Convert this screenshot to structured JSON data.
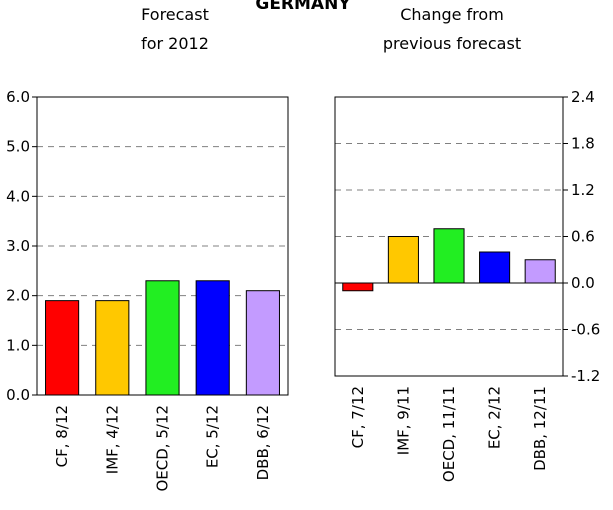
{
  "title": "GERMANY",
  "colors": {
    "grid": "#808080",
    "frame": "#000000",
    "bar_outline": "#000000"
  },
  "chart_data": [
    {
      "type": "bar",
      "title": "Forecast\nfor 2012",
      "categories": [
        "CF, 8/12",
        "IMF, 4/12",
        "OECD, 5/12",
        "EC, 5/12",
        "DBB, 6/12"
      ],
      "values": [
        1.9,
        1.9,
        2.3,
        2.3,
        2.1
      ],
      "bar_colors": [
        "#ff0000",
        "#ffc800",
        "#22ee22",
        "#0000ff",
        "#c39bff"
      ],
      "ylim": [
        0,
        6
      ],
      "yticks": [
        "0.0",
        "1.0",
        "2.0",
        "3.0",
        "4.0",
        "5.0",
        "6.0"
      ],
      "ytick_values": [
        0,
        1,
        2,
        3,
        4,
        5,
        6
      ],
      "y_axis_side": "left",
      "grid": true,
      "xlabel": "",
      "ylabel": ""
    },
    {
      "type": "bar",
      "title": "Change from\nprevious forecast",
      "categories": [
        "CF, 7/12",
        "IMF, 9/11",
        "OECD, 11/11",
        "EC, 2/12",
        "DBB, 12/11"
      ],
      "values": [
        -0.1,
        0.6,
        0.7,
        0.4,
        0.3
      ],
      "bar_colors": [
        "#ff0000",
        "#ffc800",
        "#22ee22",
        "#0000ff",
        "#c39bff"
      ],
      "ylim": [
        -1.2,
        2.4
      ],
      "yticks": [
        "-1.2",
        "-0.6",
        "0.0",
        "0.6",
        "1.2",
        "1.8",
        "2.4"
      ],
      "ytick_values": [
        -1.2,
        -0.6,
        0,
        0.6,
        1.2,
        1.8,
        2.4
      ],
      "y_axis_side": "right",
      "grid": true,
      "xlabel": "",
      "ylabel": ""
    }
  ]
}
